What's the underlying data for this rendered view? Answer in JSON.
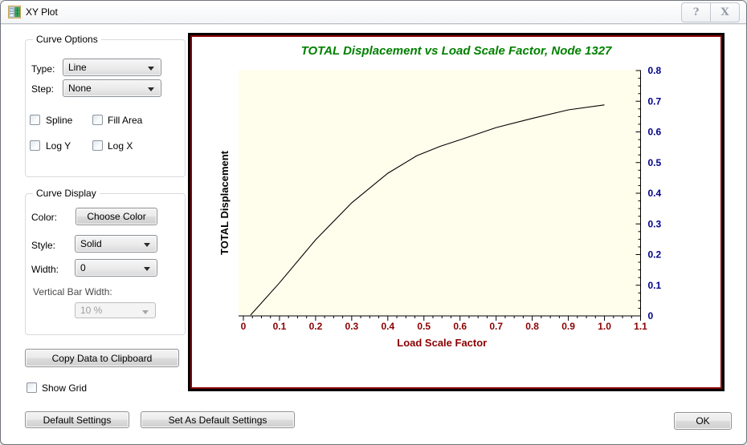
{
  "window": {
    "title": "XY Plot",
    "help_glyph": "?",
    "close_glyph": "X"
  },
  "curve_options": {
    "group_label": "Curve Options",
    "type_label": "Type:",
    "type_value": "Line",
    "step_label": "Step:",
    "step_value": "None",
    "spline_label": "Spline",
    "fill_area_label": "Fill Area",
    "log_y_label": "Log Y",
    "log_x_label": "Log X",
    "spline_checked": false,
    "fill_area_checked": false,
    "log_y_checked": false,
    "log_x_checked": false
  },
  "curve_display": {
    "group_label": "Curve Display",
    "color_label": "Color:",
    "choose_color_button": "Choose Color",
    "style_label": "Style:",
    "style_value": "Solid",
    "width_label": "Width:",
    "width_value": "0",
    "vertical_bar_width_label": "Vertical Bar Width:",
    "vertical_bar_width_value": "10 %"
  },
  "show_grid": {
    "label": "Show Grid",
    "checked": false
  },
  "buttons": {
    "copy_data": "Copy Data to Clipboard",
    "default_settings": "Default Settings",
    "set_as_default": "Set As Default Settings",
    "ok": "OK"
  },
  "chart_data": {
    "type": "line",
    "title": "TOTAL Displacement  vs Load Scale Factor, Node 1327",
    "xlabel": "Load Scale Factor",
    "ylabel": "TOTAL Displacement",
    "xlim": [
      0,
      1.1
    ],
    "ylim": [
      0,
      0.8
    ],
    "x_tick_labels": [
      "0",
      "0.1",
      "0.2",
      "0.3",
      "0.4",
      "0.5",
      "0.6",
      "0.7",
      "0.8",
      "0.9",
      "1.0",
      "1.1"
    ],
    "y_tick_labels": [
      "0",
      "0.1",
      "0.2",
      "0.3",
      "0.4",
      "0.5",
      "0.6",
      "0.7",
      "0.8"
    ],
    "x_major_step": 0.1,
    "y_major_step": 0.1,
    "minor_step": 0.025,
    "grid": false,
    "legend": null,
    "series": [
      {
        "name": "TOTAL Displacement",
        "color": "#000000",
        "points": [
          [
            0.02,
            0.003
          ],
          [
            0.1,
            0.108
          ],
          [
            0.2,
            0.248
          ],
          [
            0.3,
            0.369
          ],
          [
            0.4,
            0.465
          ],
          [
            0.48,
            0.522
          ],
          [
            0.545,
            0.553
          ],
          [
            0.6,
            0.574
          ],
          [
            0.7,
            0.614
          ],
          [
            0.8,
            0.644
          ],
          [
            0.9,
            0.672
          ],
          [
            1.0,
            0.688
          ]
        ]
      }
    ],
    "colors": {
      "title": "#008000",
      "x_text": "#8B0000",
      "y_text": "#00008B",
      "axis": "#000000",
      "plot_bg": "#FFFDEC",
      "frame_outer": "#000000",
      "frame_inner": "#8A0000"
    }
  }
}
